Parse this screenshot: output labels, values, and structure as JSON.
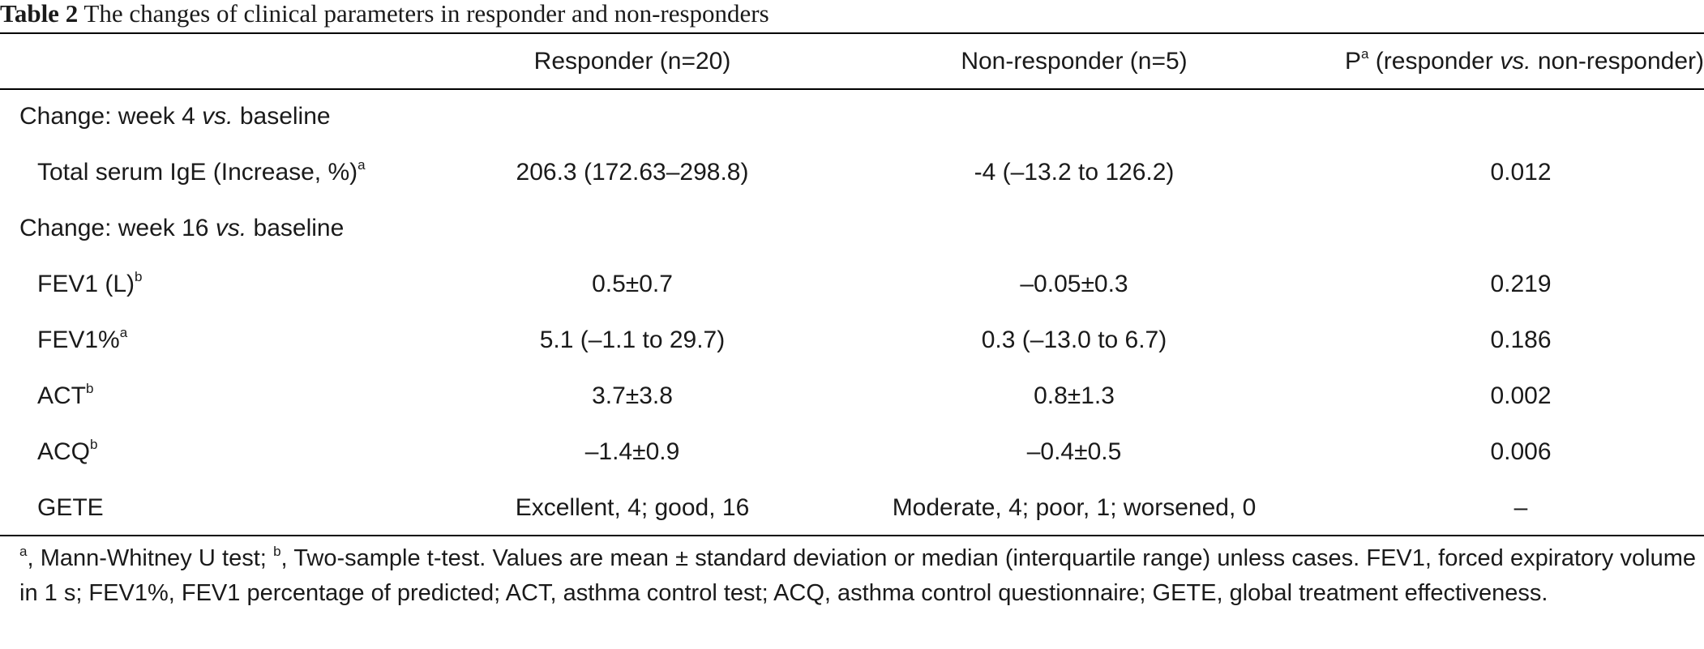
{
  "caption": {
    "label": "Table 2",
    "title": "The changes of clinical parameters in responder and non-responders"
  },
  "header": {
    "col0": "",
    "col1": "Responder (n=20)",
    "col2": "Non-responder (n=5)",
    "col3_prefix": "P",
    "col3_sup": "a",
    "col3_open": " (responder ",
    "col3_vs": "vs.",
    "col3_close": " non-responder)"
  },
  "sections": [
    {
      "label_pre": "Change: week 4 ",
      "label_vs": "vs.",
      "label_post": " baseline",
      "rows": [
        {
          "param": "Total serum IgE (Increase, %)",
          "sup": "a",
          "responder": "206.3 (172.63–298.8)",
          "nonresponder": "-4 (–13.2 to 126.2)",
          "p": "0.012"
        }
      ]
    },
    {
      "label_pre": "Change: week 16 ",
      "label_vs": "vs.",
      "label_post": " baseline",
      "rows": [
        {
          "param": "FEV1 (L)",
          "sup": "b",
          "responder": "0.5±0.7",
          "nonresponder": "–0.05±0.3",
          "p": "0.219"
        },
        {
          "param": "FEV1%",
          "sup": "a",
          "responder": "5.1 (–1.1 to 29.7)",
          "nonresponder": "0.3 (–13.0 to 6.7)",
          "p": "0.186"
        },
        {
          "param": "ACT",
          "sup": "b",
          "responder": "3.7±3.8",
          "nonresponder": "0.8±1.3",
          "p": "0.002"
        },
        {
          "param": "ACQ",
          "sup": "b",
          "responder": "–1.4±0.9",
          "nonresponder": "–0.4±0.5",
          "p": "0.006"
        },
        {
          "param": "GETE",
          "sup": "",
          "responder": "Excellent, 4; good, 16",
          "nonresponder": "Moderate, 4; poor, 1; worsened, 0",
          "p": "–"
        }
      ]
    }
  ],
  "footnote": {
    "sup_a": "a",
    "text_a": ", Mann-Whitney U test; ",
    "sup_b": "b",
    "text_b": ", Two-sample t-test. Values are mean ± standard deviation or median (interquartile range) unless cases. FEV1, forced expiratory volume in 1 s; FEV1%, FEV1 percentage of predicted; ACT, asthma control test; ACQ, asthma control questionnaire; GETE, global treatment effectiveness."
  }
}
